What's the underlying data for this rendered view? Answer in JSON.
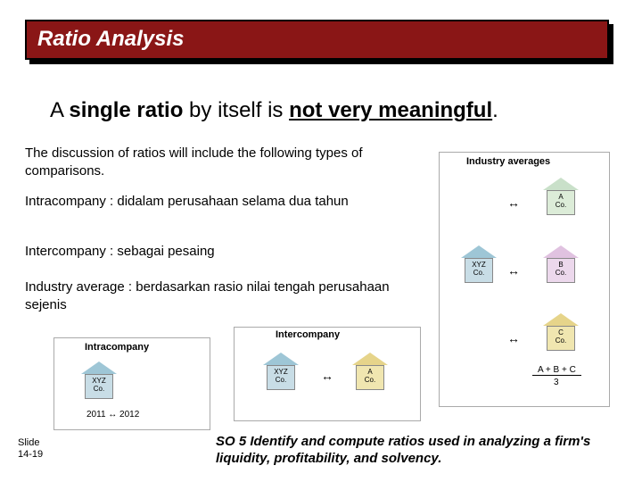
{
  "title": {
    "text": "Ratio Analysis",
    "text_color": "#ffffff",
    "bg_color": "#8a1616"
  },
  "main_statement": {
    "pre": "A ",
    "strong1": "single ratio",
    "mid": " by itself is ",
    "strong2": "not very meaningful",
    "post": "."
  },
  "intro": "The discussion of ratios will include the following types of comparisons.",
  "defs": {
    "intra": "Intracompany : didalam perusahaan selama dua tahun",
    "inter": "Intercompany : sebagai pesaing",
    "ind": "Industry average : berdasarkan rasio nilai tengah perusahaan sejenis"
  },
  "diagrams": {
    "intra": {
      "title": "Intracompany",
      "house": "XYZ\nCo.",
      "years": "2011 ↔ 2012"
    },
    "inter": {
      "title": "Intercompany",
      "house_left": "XYZ\nCo.",
      "house_right": "A\nCo.",
      "arrow": "↔"
    },
    "ind": {
      "title": "Industry averages",
      "house_a": "A\nCo.",
      "house_x": "XYZ\nCo.",
      "house_b": "B\nCo.",
      "house_c": "C\nCo.",
      "arrow": "↔",
      "frac_top": "A + B + C",
      "frac_bot": "3"
    }
  },
  "footer": {
    "slide": "Slide\n14-19",
    "so": "SO 5  Identify and compute ratios used in analyzing a firm's liquidity, profitability, and solvency."
  },
  "style": {
    "roof_colors": {
      "xyz": "#9ec6d6",
      "a_green": "#c9e0c9",
      "b_purple": "#e0c2e0",
      "a_yellow": "#e6d48a"
    }
  }
}
